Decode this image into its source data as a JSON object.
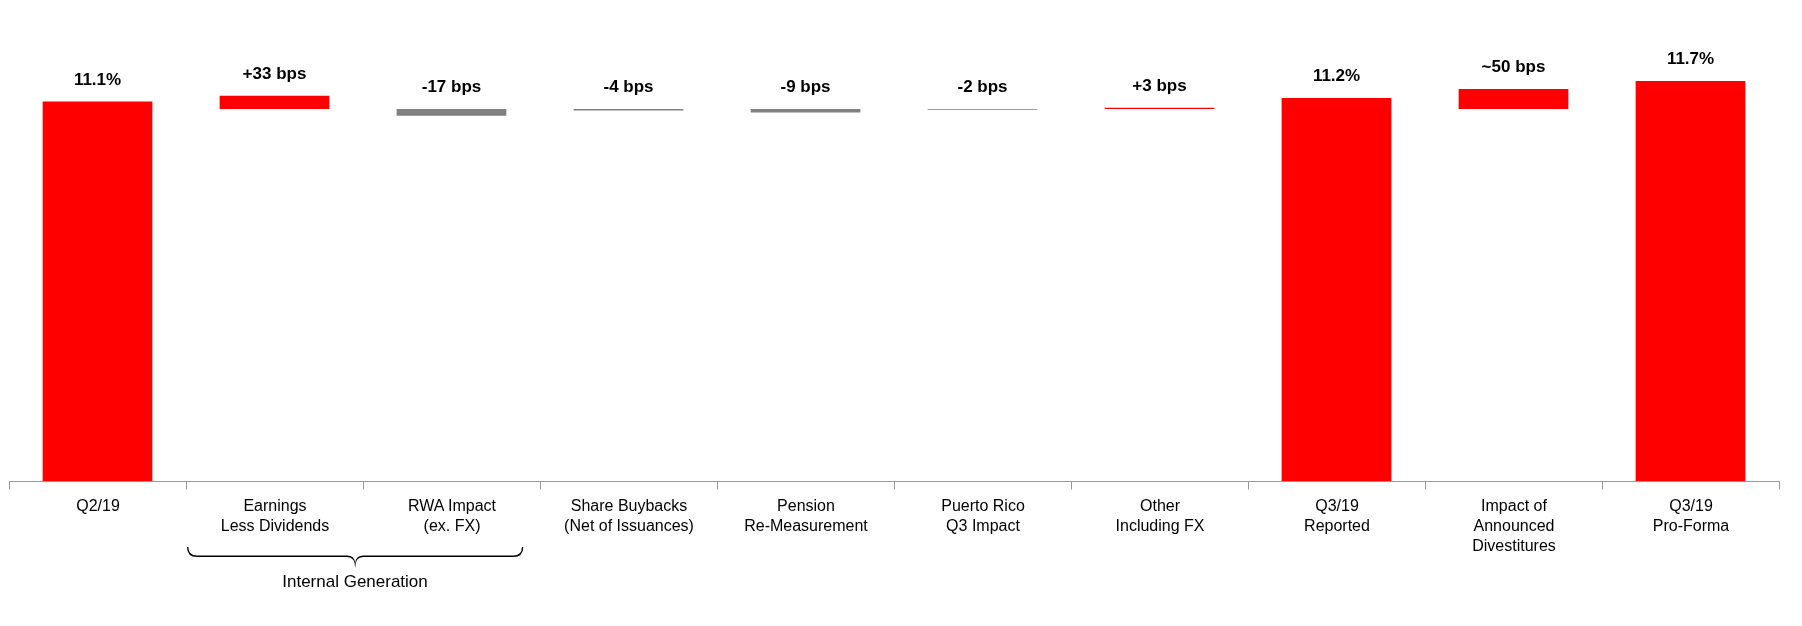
{
  "chart_data": {
    "type": "bar",
    "categories": [
      "Q2/19",
      "Earnings\nLess Dividends",
      "RWA Impact\n(ex. FX)",
      "Share Buybacks\n(Net of Issuances)",
      "Pension\nRe-Measurement",
      "Puerto Rico\nQ3 Impact",
      "Other\nIncluding FX",
      "Q3/19\nReported",
      "Impact of\nAnnounced\nDivestitures",
      "Q3/19\nPro-Forma"
    ],
    "series": [
      {
        "color": "#ff0000",
        "values": [
          11.1,
          null,
          null,
          null,
          null,
          null,
          null,
          11.2,
          null,
          11.7
        ],
        "value_labels": [
          "11.1%",
          null,
          null,
          null,
          null,
          null,
          null,
          "11.2%",
          null,
          "11.7%"
        ]
      },
      {
        "axis": "y2",
        "colors": [
          null,
          "#ff0000",
          "#808080",
          "#808080",
          "#808080",
          "#808080",
          "#ff0000",
          null,
          "#ff0000",
          null
        ],
        "values": [
          null,
          33,
          -17,
          -4,
          -9,
          -2,
          3,
          null,
          50,
          null
        ],
        "value_labels": [
          null,
          "+33 bps",
          "-17 bps",
          "-4 bps",
          "-9 bps",
          "-2 bps",
          "+3 bps",
          null,
          "~50 bps",
          null
        ]
      }
    ],
    "annotations": [
      "Internal Generation"
    ],
    "grid": false
  }
}
